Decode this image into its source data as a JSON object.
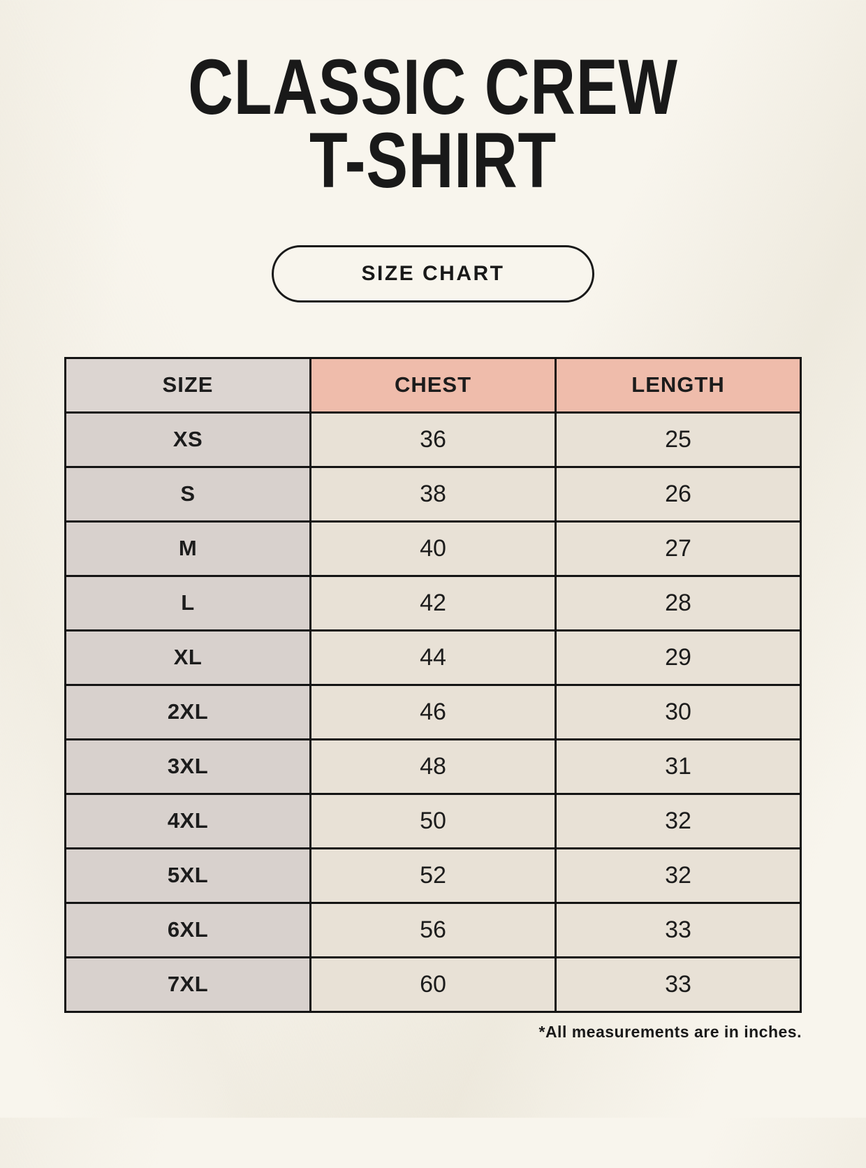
{
  "header": {
    "title_line1": "CLASSIC CREW",
    "title_line2": "T-SHIRT",
    "badge_label": "SIZE CHART"
  },
  "footnote": "*All measurements are in inches.",
  "colors": {
    "background": "#f8f5ed",
    "header_size_bg": "#dcd5d1",
    "header_measure_bg": "#efbcab",
    "size_column_bg": "#d8d1cd",
    "value_cell_bg": "#e8e1d6",
    "border": "#141414",
    "text": "#1c1c1c"
  },
  "chart_data": {
    "type": "table",
    "title": "CLASSIC CREW T-SHIRT",
    "columns": [
      "SIZE",
      "CHEST",
      "LENGTH"
    ],
    "rows": [
      [
        "XS",
        36,
        25
      ],
      [
        "S",
        38,
        26
      ],
      [
        "M",
        40,
        27
      ],
      [
        "L",
        42,
        28
      ],
      [
        "XL",
        44,
        29
      ],
      [
        "2XL",
        46,
        30
      ],
      [
        "3XL",
        48,
        31
      ],
      [
        "4XL",
        50,
        32
      ],
      [
        "5XL",
        52,
        32
      ],
      [
        "6XL",
        56,
        33
      ],
      [
        "7XL",
        60,
        33
      ]
    ],
    "note": "*All measurements are in inches.",
    "units": "inches"
  }
}
